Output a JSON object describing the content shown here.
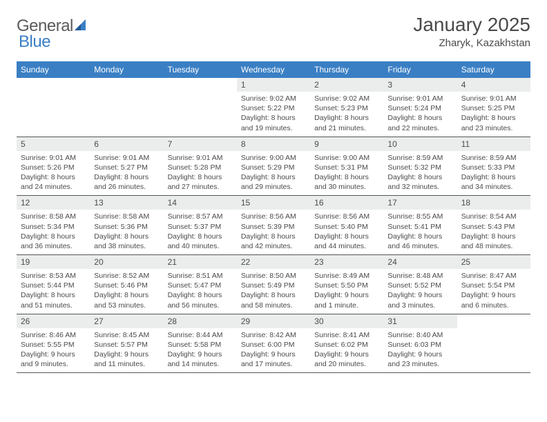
{
  "logo": {
    "text1": "General",
    "text2": "Blue"
  },
  "title": "January 2025",
  "location": "Zharyk, Kazakhstan",
  "weekdays": [
    "Sunday",
    "Monday",
    "Tuesday",
    "Wednesday",
    "Thursday",
    "Friday",
    "Saturday"
  ],
  "colors": {
    "header_bar": "#3a7fc4",
    "day_number_bg": "#ebeded",
    "text": "#4a4a4a",
    "logo_gray": "#5a5a5a",
    "logo_blue": "#3a7fc4",
    "row_border": "#555555",
    "background": "#ffffff"
  },
  "fonts": {
    "title_size": 28,
    "location_size": 15,
    "weekday_size": 12,
    "daynum_size": 12,
    "info_size": 10.5
  },
  "weeks": [
    [
      {
        "n": "",
        "info": ""
      },
      {
        "n": "",
        "info": ""
      },
      {
        "n": "",
        "info": ""
      },
      {
        "n": "1",
        "info": "Sunrise: 9:02 AM\nSunset: 5:22 PM\nDaylight: 8 hours and 19 minutes."
      },
      {
        "n": "2",
        "info": "Sunrise: 9:02 AM\nSunset: 5:23 PM\nDaylight: 8 hours and 21 minutes."
      },
      {
        "n": "3",
        "info": "Sunrise: 9:01 AM\nSunset: 5:24 PM\nDaylight: 8 hours and 22 minutes."
      },
      {
        "n": "4",
        "info": "Sunrise: 9:01 AM\nSunset: 5:25 PM\nDaylight: 8 hours and 23 minutes."
      }
    ],
    [
      {
        "n": "5",
        "info": "Sunrise: 9:01 AM\nSunset: 5:26 PM\nDaylight: 8 hours and 24 minutes."
      },
      {
        "n": "6",
        "info": "Sunrise: 9:01 AM\nSunset: 5:27 PM\nDaylight: 8 hours and 26 minutes."
      },
      {
        "n": "7",
        "info": "Sunrise: 9:01 AM\nSunset: 5:28 PM\nDaylight: 8 hours and 27 minutes."
      },
      {
        "n": "8",
        "info": "Sunrise: 9:00 AM\nSunset: 5:29 PM\nDaylight: 8 hours and 29 minutes."
      },
      {
        "n": "9",
        "info": "Sunrise: 9:00 AM\nSunset: 5:31 PM\nDaylight: 8 hours and 30 minutes."
      },
      {
        "n": "10",
        "info": "Sunrise: 8:59 AM\nSunset: 5:32 PM\nDaylight: 8 hours and 32 minutes."
      },
      {
        "n": "11",
        "info": "Sunrise: 8:59 AM\nSunset: 5:33 PM\nDaylight: 8 hours and 34 minutes."
      }
    ],
    [
      {
        "n": "12",
        "info": "Sunrise: 8:58 AM\nSunset: 5:34 PM\nDaylight: 8 hours and 36 minutes."
      },
      {
        "n": "13",
        "info": "Sunrise: 8:58 AM\nSunset: 5:36 PM\nDaylight: 8 hours and 38 minutes."
      },
      {
        "n": "14",
        "info": "Sunrise: 8:57 AM\nSunset: 5:37 PM\nDaylight: 8 hours and 40 minutes."
      },
      {
        "n": "15",
        "info": "Sunrise: 8:56 AM\nSunset: 5:39 PM\nDaylight: 8 hours and 42 minutes."
      },
      {
        "n": "16",
        "info": "Sunrise: 8:56 AM\nSunset: 5:40 PM\nDaylight: 8 hours and 44 minutes."
      },
      {
        "n": "17",
        "info": "Sunrise: 8:55 AM\nSunset: 5:41 PM\nDaylight: 8 hours and 46 minutes."
      },
      {
        "n": "18",
        "info": "Sunrise: 8:54 AM\nSunset: 5:43 PM\nDaylight: 8 hours and 48 minutes."
      }
    ],
    [
      {
        "n": "19",
        "info": "Sunrise: 8:53 AM\nSunset: 5:44 PM\nDaylight: 8 hours and 51 minutes."
      },
      {
        "n": "20",
        "info": "Sunrise: 8:52 AM\nSunset: 5:46 PM\nDaylight: 8 hours and 53 minutes."
      },
      {
        "n": "21",
        "info": "Sunrise: 8:51 AM\nSunset: 5:47 PM\nDaylight: 8 hours and 56 minutes."
      },
      {
        "n": "22",
        "info": "Sunrise: 8:50 AM\nSunset: 5:49 PM\nDaylight: 8 hours and 58 minutes."
      },
      {
        "n": "23",
        "info": "Sunrise: 8:49 AM\nSunset: 5:50 PM\nDaylight: 9 hours and 1 minute."
      },
      {
        "n": "24",
        "info": "Sunrise: 8:48 AM\nSunset: 5:52 PM\nDaylight: 9 hours and 3 minutes."
      },
      {
        "n": "25",
        "info": "Sunrise: 8:47 AM\nSunset: 5:54 PM\nDaylight: 9 hours and 6 minutes."
      }
    ],
    [
      {
        "n": "26",
        "info": "Sunrise: 8:46 AM\nSunset: 5:55 PM\nDaylight: 9 hours and 9 minutes."
      },
      {
        "n": "27",
        "info": "Sunrise: 8:45 AM\nSunset: 5:57 PM\nDaylight: 9 hours and 11 minutes."
      },
      {
        "n": "28",
        "info": "Sunrise: 8:44 AM\nSunset: 5:58 PM\nDaylight: 9 hours and 14 minutes."
      },
      {
        "n": "29",
        "info": "Sunrise: 8:42 AM\nSunset: 6:00 PM\nDaylight: 9 hours and 17 minutes."
      },
      {
        "n": "30",
        "info": "Sunrise: 8:41 AM\nSunset: 6:02 PM\nDaylight: 9 hours and 20 minutes."
      },
      {
        "n": "31",
        "info": "Sunrise: 8:40 AM\nSunset: 6:03 PM\nDaylight: 9 hours and 23 minutes."
      },
      {
        "n": "",
        "info": ""
      }
    ]
  ]
}
